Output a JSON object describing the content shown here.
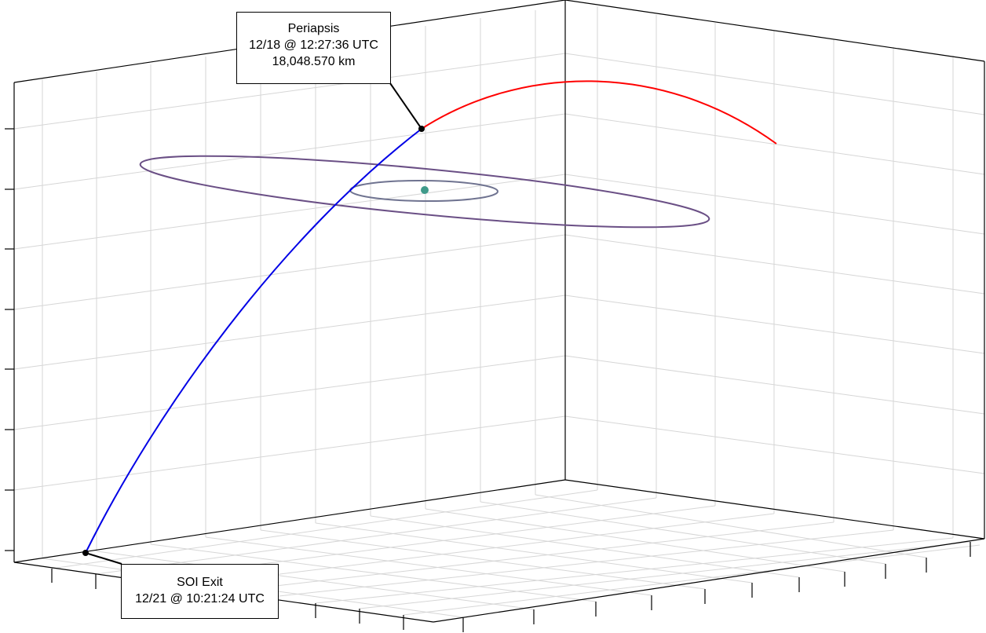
{
  "scene": {
    "colors": {
      "trajectory_inbound": "#0000e6",
      "trajectory_outbound": "#ff0000",
      "outer_orbit": "#6a4f85",
      "inner_orbit": "#6f7390",
      "central_body": "#3f9a8a",
      "marker": "#000000",
      "grid": "#d6d6d6"
    }
  },
  "callouts": {
    "periapsis": {
      "title": "Periapsis",
      "time": "12/18 @ 12:27:36 UTC",
      "distance": "18,048.570 km"
    },
    "soi_exit": {
      "title": "SOI Exit",
      "time": "12/21 @ 10:21:24 UTC"
    }
  }
}
